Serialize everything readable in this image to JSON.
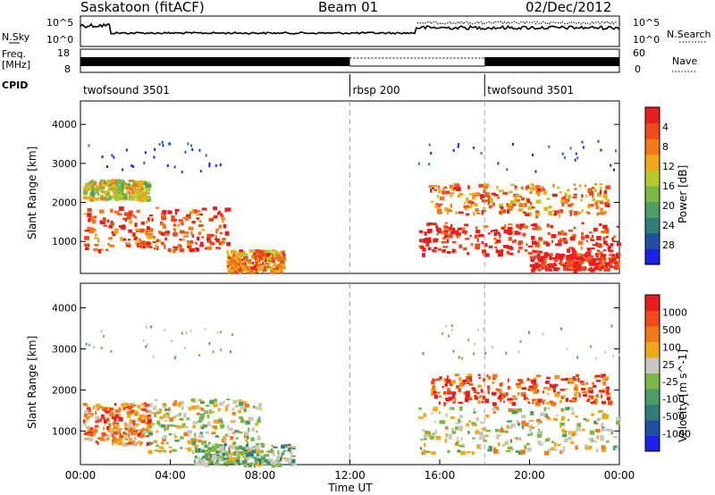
{
  "header": {
    "station": "Saskatoon (fitACF)",
    "beam": "Beam 01",
    "date": "02/Dec/2012"
  },
  "top_panels": {
    "nsky_label": "N.Sky",
    "nsky_ticks": [
      "10^5",
      "10^0"
    ],
    "nsearch_label": "N.Search",
    "nsearch_ticks": [
      "10^5",
      "10^0"
    ],
    "freq_label_1": "Freq.",
    "freq_label_2": "[MHz]",
    "freq_ticks": [
      "18",
      "8"
    ],
    "nave_label": "Nave",
    "nave_ticks": [
      "60",
      "0"
    ],
    "cpid_label": "CPID",
    "cpid_segments": [
      {
        "label": "twofsound 3501",
        "start_hour": 0
      },
      {
        "label": "rbsp 200",
        "start_hour": 12
      },
      {
        "label": "twofsound 3501",
        "start_hour": 18
      }
    ]
  },
  "x_axis": {
    "label": "Time UT",
    "range_hours": [
      0,
      24
    ],
    "ticks": [
      "00:00",
      "04:00",
      "08:00",
      "12:00",
      "16:00",
      "20:00",
      "00:00"
    ]
  },
  "colors": {
    "power_scale": [
      "#1a22e8",
      "#1f4fa0",
      "#2e7d7a",
      "#4d9e64",
      "#7ab845",
      "#b8c92b",
      "#f0a818",
      "#f07a1a",
      "#ee4a1a",
      "#e81e1e"
    ],
    "velocity_scale": [
      "#1a22e8",
      "#1f4fa0",
      "#2e7d7a",
      "#4d9e64",
      "#7ab845",
      "#c8c8c0",
      "#f0a818",
      "#f07a1a",
      "#ee4a1a",
      "#e81e1e"
    ]
  },
  "chart_data": [
    {
      "type": "heatmap",
      "title": "Power",
      "ylabel": "Slant Range [km]",
      "ylim": [
        180,
        4600
      ],
      "yticks": [
        "1000",
        "2000",
        "3000",
        "4000"
      ],
      "colorbar_label": "Power [dB]",
      "colorbar_ticks": [
        "4",
        "8",
        "12",
        "16",
        "20",
        "24",
        "28"
      ],
      "regions": [
        {
          "t": [
            0.1,
            6.5
          ],
          "r": [
            800,
            1900
          ],
          "level": 8
        },
        {
          "t": [
            0.1,
            3.0
          ],
          "r": [
            2100,
            2600
          ],
          "level": 5
        },
        {
          "t": [
            6.5,
            9.0
          ],
          "r": [
            250,
            800
          ],
          "level": 7
        },
        {
          "t": [
            15.0,
            23.9
          ],
          "r": [
            700,
            1500
          ],
          "level": 9
        },
        {
          "t": [
            15.5,
            23.5
          ],
          "r": [
            1700,
            2500
          ],
          "level": 7
        },
        {
          "t": [
            20.0,
            23.9
          ],
          "r": [
            300,
            700
          ],
          "level": 9
        }
      ]
    },
    {
      "type": "heatmap",
      "title": "Velocity",
      "ylabel": "Slant Range [km]",
      "ylim": [
        180,
        4600
      ],
      "yticks": [
        "1000",
        "2000",
        "3000",
        "4000"
      ],
      "colorbar_label": "Velocity [m s^-1]",
      "colorbar_ticks": [
        "1000",
        "500",
        "100",
        "25",
        "-25",
        "-100",
        "-500",
        "-1000"
      ],
      "regions": [
        {
          "t": [
            0.1,
            3.0
          ],
          "r": [
            700,
            1700
          ],
          "level": 7
        },
        {
          "t": [
            3.0,
            8.0
          ],
          "r": [
            500,
            1800
          ],
          "level": 5
        },
        {
          "t": [
            5.0,
            9.5
          ],
          "r": [
            200,
            700
          ],
          "level": 4
        },
        {
          "t": [
            15.0,
            23.9
          ],
          "r": [
            500,
            1600
          ],
          "level": 5
        },
        {
          "t": [
            15.5,
            23.5
          ],
          "r": [
            1700,
            2400
          ],
          "level": 8
        }
      ]
    }
  ]
}
